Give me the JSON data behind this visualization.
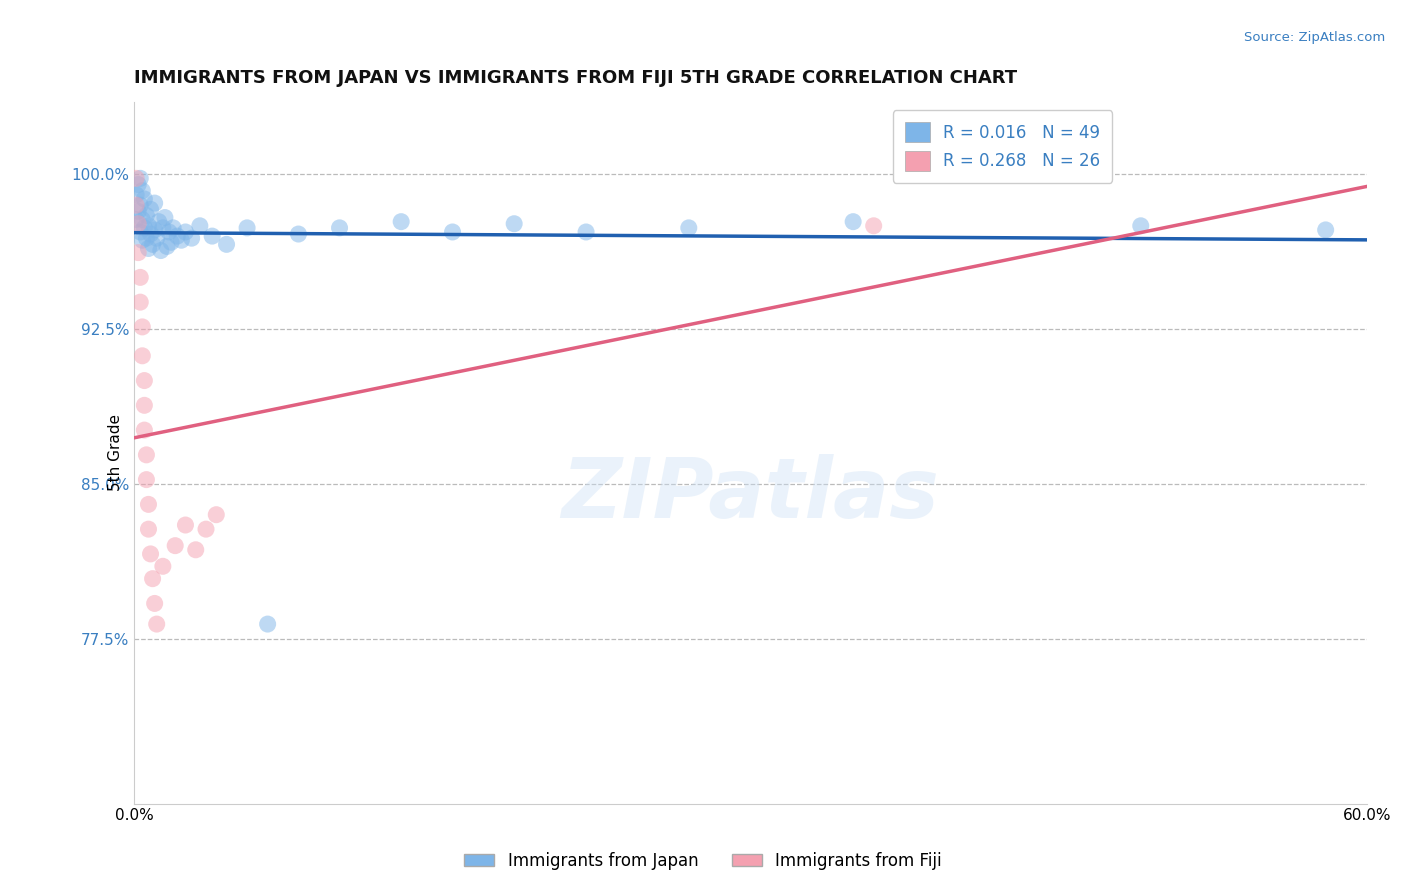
{
  "title": "IMMIGRANTS FROM JAPAN VS IMMIGRANTS FROM FIJI 5TH GRADE CORRELATION CHART",
  "source_text": "Source: ZipAtlas.com",
  "ylabel": "5th Grade",
  "xlim": [
    0.0,
    0.6
  ],
  "ylim": [
    0.695,
    1.035
  ],
  "ytick_values": [
    0.775,
    0.85,
    0.925,
    1.0
  ],
  "ytick_labels": [
    "77.5%",
    "85.0%",
    "92.5%",
    "100.0%"
  ],
  "japan_color": "#7EB5E8",
  "fiji_color": "#F4A0B0",
  "japan_line_color": "#2060B0",
  "fiji_line_color": "#E06080",
  "grid_color": "#bbbbbb",
  "japan_R": 0.016,
  "japan_N": 49,
  "fiji_R": 0.268,
  "fiji_N": 26,
  "watermark": "ZIPatlas",
  "title_color": "#111111",
  "source_color": "#3a7fc1",
  "ytick_color": "#3a7fc1",
  "legend_text_color": "#3a7fc1",
  "japan_x": [
    0.001,
    0.001,
    0.002,
    0.002,
    0.003,
    0.003,
    0.003,
    0.004,
    0.004,
    0.004,
    0.005,
    0.005,
    0.006,
    0.006,
    0.007,
    0.007,
    0.008,
    0.008,
    0.009,
    0.01,
    0.01,
    0.011,
    0.012,
    0.013,
    0.014,
    0.015,
    0.016,
    0.017,
    0.018,
    0.019,
    0.021,
    0.023,
    0.025,
    0.028,
    0.032,
    0.038,
    0.045,
    0.055,
    0.065,
    0.08,
    0.1,
    0.13,
    0.155,
    0.185,
    0.22,
    0.27,
    0.35,
    0.49,
    0.58
  ],
  "japan_y": [
    0.99,
    0.978,
    0.982,
    0.995,
    0.972,
    0.985,
    0.998,
    0.968,
    0.978,
    0.992,
    0.974,
    0.988,
    0.969,
    0.98,
    0.964,
    0.975,
    0.971,
    0.983,
    0.966,
    0.973,
    0.986,
    0.969,
    0.977,
    0.963,
    0.974,
    0.979,
    0.965,
    0.972,
    0.967,
    0.974,
    0.97,
    0.968,
    0.972,
    0.969,
    0.975,
    0.97,
    0.966,
    0.974,
    0.782,
    0.971,
    0.974,
    0.977,
    0.972,
    0.976,
    0.972,
    0.974,
    0.977,
    0.975,
    0.973
  ],
  "fiji_x": [
    0.001,
    0.001,
    0.002,
    0.002,
    0.003,
    0.003,
    0.004,
    0.004,
    0.005,
    0.005,
    0.005,
    0.006,
    0.006,
    0.007,
    0.007,
    0.008,
    0.009,
    0.01,
    0.011,
    0.014,
    0.02,
    0.025,
    0.03,
    0.035,
    0.04,
    0.36
  ],
  "fiji_y": [
    0.998,
    0.985,
    0.976,
    0.962,
    0.95,
    0.938,
    0.926,
    0.912,
    0.9,
    0.888,
    0.876,
    0.864,
    0.852,
    0.84,
    0.828,
    0.816,
    0.804,
    0.792,
    0.782,
    0.81,
    0.82,
    0.83,
    0.818,
    0.828,
    0.835,
    0.975
  ]
}
